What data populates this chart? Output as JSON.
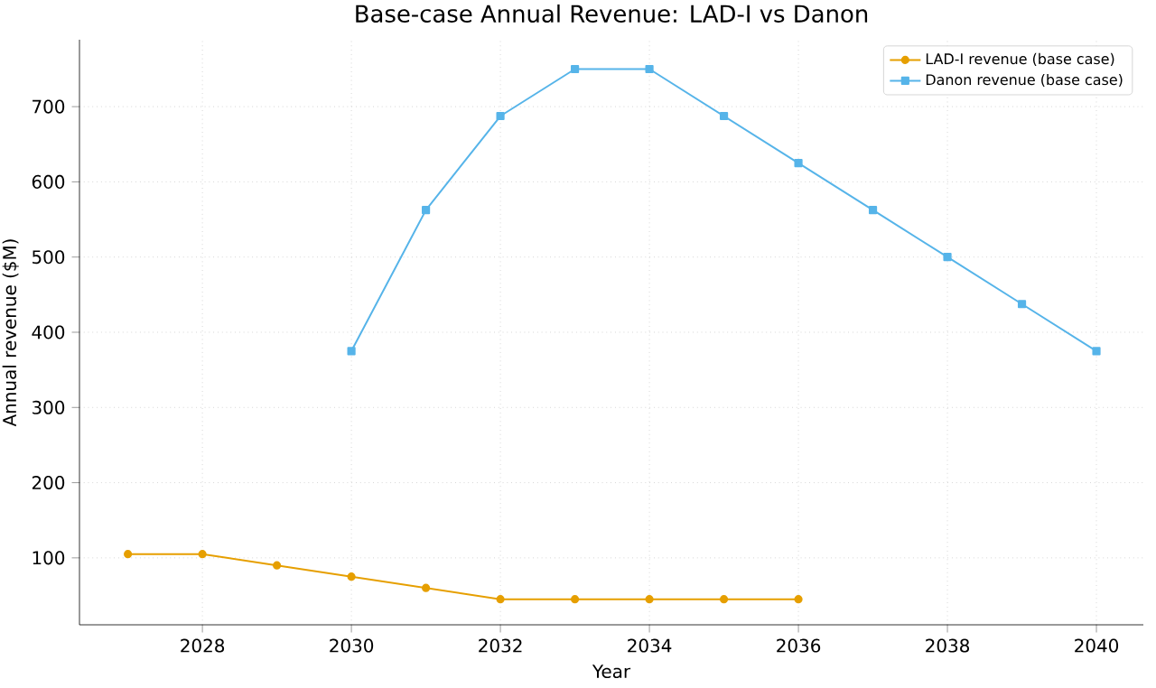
{
  "chart_data": {
    "type": "line",
    "title": "Base-case Annual Revenue: LAD-I vs Danon",
    "xlabel": "Year",
    "ylabel": "Annual revenue ($M)",
    "series": [
      {
        "name": "LAD-I revenue (base case)",
        "color": "#e69f00",
        "marker": "circle",
        "x": [
          2027,
          2028,
          2029,
          2030,
          2031,
          2032,
          2033,
          2034,
          2035,
          2036
        ],
        "values": [
          105,
          105,
          90,
          75,
          60,
          45,
          45,
          45,
          45,
          45
        ]
      },
      {
        "name": "Danon revenue (base case)",
        "color": "#56b4e9",
        "marker": "square",
        "x": [
          2030,
          2031,
          2032,
          2033,
          2034,
          2035,
          2036,
          2037,
          2038,
          2039,
          2040
        ],
        "values": [
          375,
          562.5,
          687.5,
          750,
          750,
          687.5,
          625,
          562.5,
          500,
          437.5,
          375
        ]
      }
    ],
    "xlim": [
      2026.35,
      2040.63
    ],
    "ylim": [
      11,
      789
    ],
    "xticks": [
      2028,
      2030,
      2032,
      2034,
      2036,
      2038,
      2040
    ],
    "yticks": [
      100,
      200,
      300,
      400,
      500,
      600,
      700
    ],
    "grid": true,
    "legend": "top right",
    "line_style": "solid"
  }
}
